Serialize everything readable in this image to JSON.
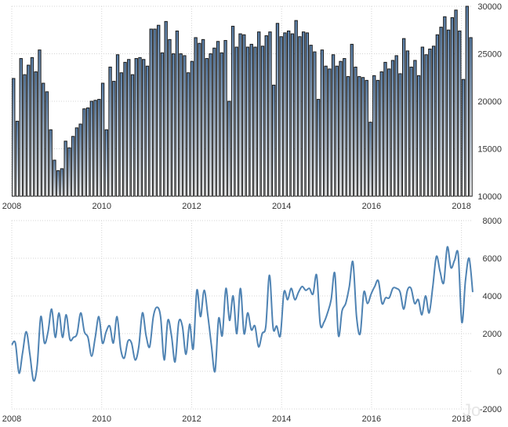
{
  "chart_data": [
    {
      "type": "bar",
      "title": "",
      "xlabel": "",
      "ylabel": "",
      "x_ticks": [
        "2008",
        "2010",
        "2012",
        "2014",
        "2016",
        "2018"
      ],
      "y_ticks": [
        "10000",
        "15000",
        "20000",
        "25000",
        "30000"
      ],
      "ylim": [
        10000,
        30000
      ],
      "grid": true,
      "colors": {
        "bar_top": "#5a7fa8",
        "bar_bottom": "#ffffff",
        "bar_border": "#1a1a1a"
      },
      "series": [
        {
          "values": [
            22400,
            17900,
            24500,
            22800,
            23800,
            24600,
            23100,
            25400,
            21900,
            21000,
            17000,
            13800,
            12700,
            12900,
            15800,
            15100,
            16300,
            17200,
            17600,
            19200,
            19300,
            20000,
            20100,
            20200,
            21900,
            17000,
            23600,
            22100,
            24900,
            23000,
            24100,
            24400,
            22800,
            24500,
            24600,
            24400,
            23700,
            27600,
            27600,
            28000,
            25100,
            28400,
            26500,
            25000,
            27400,
            25000,
            24800,
            23000,
            24200,
            26700,
            26100,
            26500,
            24500,
            25000,
            25600,
            26300,
            25100,
            26400,
            20000,
            27900,
            25700,
            27100,
            27000,
            25700,
            26000,
            25700,
            27300,
            25800,
            26900,
            27300,
            21700,
            28200,
            26800,
            27200,
            27400,
            27100,
            28500,
            26800,
            27300,
            27200,
            25900,
            25200,
            20200,
            25400,
            23700,
            23400,
            24900,
            23700,
            24200,
            24500,
            22600,
            26000,
            23600,
            22600,
            22500,
            22200,
            17800,
            22700,
            22200,
            23100,
            24100,
            23400,
            24300,
            24800,
            22900,
            26600,
            25300,
            23600,
            24300,
            22700,
            25700,
            24900,
            25500,
            25800,
            27000,
            27800,
            28900,
            27500,
            28800,
            29600,
            27400,
            22300,
            30000,
            26700
          ]
        }
      ]
    },
    {
      "type": "line",
      "title": "",
      "xlabel": "",
      "ylabel": "",
      "x_ticks": [
        "2008",
        "2010",
        "2012",
        "2014",
        "2016",
        "2018"
      ],
      "y_ticks": [
        "-2000",
        "0",
        "2000",
        "4000",
        "6000",
        "8000"
      ],
      "ylim": [
        -2000,
        8000
      ],
      "grid": true,
      "colors": {
        "line": "#4f83b3"
      },
      "series": [
        {
          "values": [
            1400,
            1500,
            -100,
            1000,
            2100,
            900,
            -500,
            300,
            2900,
            1500,
            2100,
            3300,
            1800,
            3100,
            1800,
            3000,
            1700,
            1800,
            2000,
            3100,
            2100,
            1800,
            800,
            1800,
            2900,
            1500,
            2100,
            2400,
            1500,
            2900,
            1200,
            700,
            1600,
            1500,
            600,
            1300,
            3100,
            1900,
            1300,
            2900,
            3400,
            2900,
            600,
            2700,
            1900,
            500,
            2600,
            2400,
            900,
            2500,
            1200,
            4300,
            2900,
            4300,
            3000,
            1400,
            0,
            2800,
            1900,
            4400,
            2700,
            4000,
            2000,
            4400,
            2000,
            3100,
            2200,
            2400,
            1300,
            2000,
            2400,
            5100,
            2300,
            2400,
            1900,
            4200,
            3800,
            4400,
            3800,
            4200,
            4500,
            4300,
            4400,
            4100,
            5100,
            2500,
            2600,
            3100,
            3800,
            5200,
            1900,
            3200,
            3600,
            4500,
            5800,
            2900,
            2000,
            4200,
            3600,
            4100,
            4500,
            4800,
            3600,
            3900,
            3900,
            4400,
            4400,
            4200,
            3300,
            4300,
            4400,
            3600,
            3800,
            3000,
            4000,
            3100,
            4500,
            6100,
            5300,
            4700,
            6600,
            5500,
            5900,
            6200,
            2600,
            4800,
            6000,
            4200
          ]
        }
      ]
    }
  ],
  "watermark": "Jo"
}
